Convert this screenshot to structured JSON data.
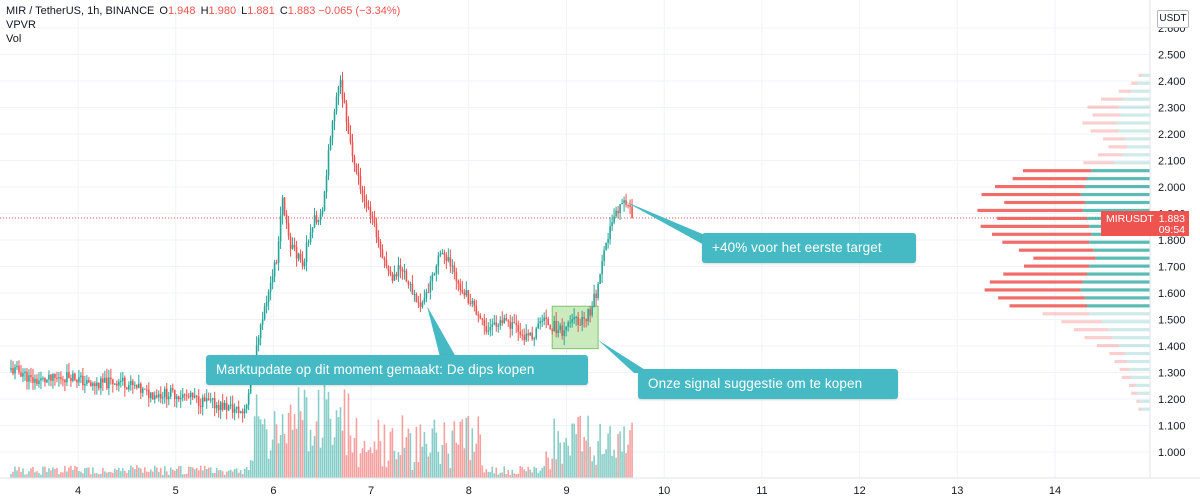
{
  "header": {
    "symbol": "MIR / TetherUS, 1h, BINANCE",
    "open_label": "O",
    "open": "1.948",
    "high_label": "H",
    "high": "1.980",
    "low_label": "L",
    "low": "1.881",
    "close_label": "C",
    "close": "1.883",
    "change": "−0.065 (−3.34%)",
    "indicators": [
      "VPVR",
      "Vol"
    ]
  },
  "price_axis": {
    "currency": "USDT",
    "ticks": [
      "2.600",
      "2.500",
      "2.400",
      "2.300",
      "2.200",
      "2.100",
      "2.000",
      "1.900",
      "1.800",
      "1.700",
      "1.600",
      "1.500",
      "1.400",
      "1.300",
      "1.200",
      "1.100",
      "1.000"
    ]
  },
  "current_price": {
    "symbol": "MIRUSDT",
    "price": "1.883",
    "countdown": "09:54"
  },
  "colors": {
    "up": "#26a69a",
    "down": "#ef5350",
    "annotation": "#45b9c4",
    "highlight": "#b9e3a8"
  },
  "annotations": [
    {
      "id": "target",
      "text": "+40% voor het eerste target"
    },
    {
      "id": "update",
      "text": "Marktupdate op dit moment gemaakt: De dips kopen"
    },
    {
      "id": "signal",
      "text": "Onze signal suggestie om te kopen"
    }
  ],
  "chart_data": {
    "type": "candlestick",
    "x_ticks": [
      "4",
      "5",
      "6",
      "7",
      "8",
      "9",
      "10",
      "11",
      "12",
      "13",
      "14"
    ],
    "y_range": [
      0.95,
      2.62
    ],
    "anchors": [
      {
        "t": 0,
        "p": 1.31
      },
      {
        "t": 6,
        "p": 1.3
      },
      {
        "t": 10,
        "p": 1.27
      },
      {
        "t": 20,
        "p": 1.27
      },
      {
        "t": 30,
        "p": 1.29
      },
      {
        "t": 40,
        "p": 1.25
      },
      {
        "t": 55,
        "p": 1.27
      },
      {
        "t": 68,
        "p": 1.22
      },
      {
        "t": 82,
        "p": 1.22
      },
      {
        "t": 96,
        "p": 1.19
      },
      {
        "t": 108,
        "p": 1.17
      },
      {
        "t": 116,
        "p": 1.15
      },
      {
        "t": 118,
        "p": 1.19
      },
      {
        "t": 122,
        "p": 1.35
      },
      {
        "t": 128,
        "p": 1.58
      },
      {
        "t": 133,
        "p": 1.73
      },
      {
        "t": 136,
        "p": 1.95
      },
      {
        "t": 140,
        "p": 1.78
      },
      {
        "t": 146,
        "p": 1.7
      },
      {
        "t": 150,
        "p": 1.85
      },
      {
        "t": 156,
        "p": 1.92
      },
      {
        "t": 160,
        "p": 2.2
      },
      {
        "t": 163,
        "p": 2.33
      },
      {
        "t": 165,
        "p": 2.4
      },
      {
        "t": 168,
        "p": 2.26
      },
      {
        "t": 172,
        "p": 2.08
      },
      {
        "t": 178,
        "p": 1.93
      },
      {
        "t": 184,
        "p": 1.8
      },
      {
        "t": 190,
        "p": 1.66
      },
      {
        "t": 196,
        "p": 1.7
      },
      {
        "t": 200,
        "p": 1.62
      },
      {
        "t": 205,
        "p": 1.55
      },
      {
        "t": 210,
        "p": 1.63
      },
      {
        "t": 215,
        "p": 1.77
      },
      {
        "t": 220,
        "p": 1.7
      },
      {
        "t": 226,
        "p": 1.62
      },
      {
        "t": 232,
        "p": 1.55
      },
      {
        "t": 238,
        "p": 1.47
      },
      {
        "t": 245,
        "p": 1.49
      },
      {
        "t": 252,
        "p": 1.47
      },
      {
        "t": 258,
        "p": 1.43
      },
      {
        "t": 263,
        "p": 1.45
      },
      {
        "t": 266,
        "p": 1.51
      },
      {
        "t": 270,
        "p": 1.48
      },
      {
        "t": 276,
        "p": 1.46
      },
      {
        "t": 281,
        "p": 1.49
      },
      {
        "t": 286,
        "p": 1.5
      },
      {
        "t": 290,
        "p": 1.53
      },
      {
        "t": 294,
        "p": 1.62
      },
      {
        "t": 297,
        "p": 1.74
      },
      {
        "t": 300,
        "p": 1.85
      },
      {
        "t": 303,
        "p": 1.9
      },
      {
        "t": 306,
        "p": 1.95
      },
      {
        "t": 309,
        "p": 1.94
      },
      {
        "t": 311,
        "p": 1.883
      }
    ],
    "vpvr_levels": [
      {
        "p": 2.42,
        "b": 8,
        "s": 2
      },
      {
        "p": 2.39,
        "b": 12,
        "s": 4
      },
      {
        "p": 2.36,
        "b": 18,
        "s": 8
      },
      {
        "p": 2.33,
        "b": 26,
        "s": 14
      },
      {
        "p": 2.3,
        "b": 30,
        "s": 20
      },
      {
        "p": 2.27,
        "b": 28,
        "s": 18
      },
      {
        "p": 2.24,
        "b": 32,
        "s": 22
      },
      {
        "p": 2.21,
        "b": 30,
        "s": 18
      },
      {
        "p": 2.18,
        "b": 24,
        "s": 14
      },
      {
        "p": 2.15,
        "b": 22,
        "s": 12
      },
      {
        "p": 2.12,
        "b": 26,
        "s": 16
      },
      {
        "p": 2.09,
        "b": 34,
        "s": 20
      },
      {
        "p": 2.06,
        "b": 56,
        "s": 44
      },
      {
        "p": 2.03,
        "b": 60,
        "s": 48
      },
      {
        "p": 2.0,
        "b": 62,
        "s": 58
      },
      {
        "p": 1.97,
        "b": 66,
        "s": 64
      },
      {
        "p": 1.94,
        "b": 62,
        "s": 52
      },
      {
        "p": 1.91,
        "b": 64,
        "s": 68
      },
      {
        "p": 1.88,
        "b": 60,
        "s": 58
      },
      {
        "p": 1.85,
        "b": 58,
        "s": 70
      },
      {
        "p": 1.82,
        "b": 56,
        "s": 64
      },
      {
        "p": 1.79,
        "b": 58,
        "s": 56
      },
      {
        "p": 1.76,
        "b": 54,
        "s": 48
      },
      {
        "p": 1.73,
        "b": 52,
        "s": 40
      },
      {
        "p": 1.7,
        "b": 58,
        "s": 42
      },
      {
        "p": 1.67,
        "b": 60,
        "s": 54
      },
      {
        "p": 1.64,
        "b": 64,
        "s": 60
      },
      {
        "p": 1.61,
        "b": 66,
        "s": 62
      },
      {
        "p": 1.58,
        "b": 62,
        "s": 56
      },
      {
        "p": 1.55,
        "b": 60,
        "s": 50
      },
      {
        "p": 1.52,
        "b": 58,
        "s": 30
      },
      {
        "p": 1.49,
        "b": 46,
        "s": 26
      },
      {
        "p": 1.46,
        "b": 40,
        "s": 22
      },
      {
        "p": 1.43,
        "b": 36,
        "s": 18
      },
      {
        "p": 1.4,
        "b": 30,
        "s": 14
      },
      {
        "p": 1.37,
        "b": 24,
        "s": 10
      },
      {
        "p": 1.34,
        "b": 22,
        "s": 8
      },
      {
        "p": 1.31,
        "b": 20,
        "s": 6
      },
      {
        "p": 1.28,
        "b": 18,
        "s": 6
      },
      {
        "p": 1.25,
        "b": 14,
        "s": 4
      },
      {
        "p": 1.22,
        "b": 12,
        "s": 4
      },
      {
        "p": 1.19,
        "b": 10,
        "s": 2
      },
      {
        "p": 1.16,
        "b": 8,
        "s": 2
      }
    ]
  }
}
